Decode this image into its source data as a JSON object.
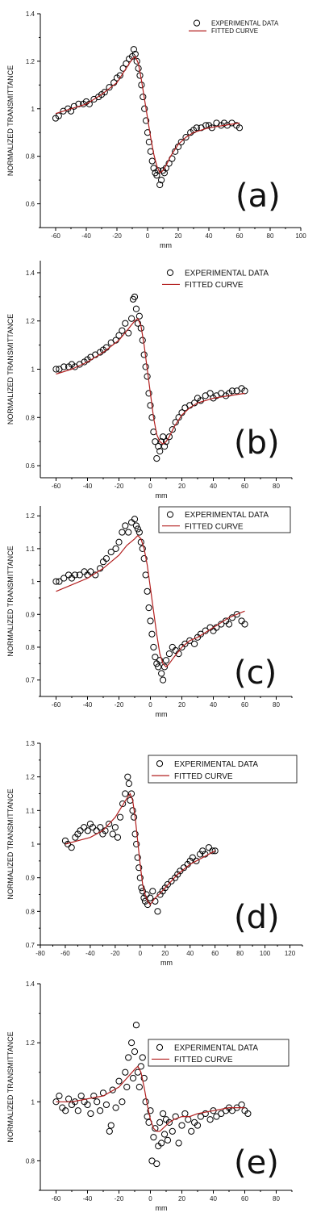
{
  "chart_data": [
    {
      "type": "scatter",
      "panel_label": "(a)",
      "xlabel": "mm",
      "ylabel": "NORMALIZED TRANSMITTANCE",
      "xlim": [
        -70,
        100
      ],
      "ylim": [
        0.5,
        1.4
      ],
      "xticks": [
        -60,
        -40,
        -20,
        0,
        20,
        40,
        60,
        80,
        100
      ],
      "yticks": [
        0.6,
        0.8,
        1.0,
        1.2,
        1.4
      ],
      "legend_position": "top-right",
      "legend_framed": false,
      "series": [
        {
          "name": "EXPERIMENTAL DATA",
          "kind": "markers",
          "x": [
            -60,
            -58,
            -55,
            -52,
            -50,
            -48,
            -45,
            -42,
            -40,
            -38,
            -35,
            -32,
            -30,
            -28,
            -25,
            -22,
            -20,
            -18,
            -16,
            -14,
            -12,
            -10,
            -9,
            -8,
            -7,
            -6,
            -5,
            -4,
            -3,
            -2,
            -1,
            0,
            1,
            2,
            3,
            4,
            5,
            6,
            7,
            8,
            9,
            10,
            11,
            12,
            14,
            16,
            18,
            20,
            22,
            25,
            28,
            30,
            32,
            35,
            38,
            40,
            42,
            45,
            48,
            50,
            52,
            55,
            58,
            60
          ],
          "y": [
            0.96,
            0.97,
            0.99,
            1.0,
            0.99,
            1.01,
            1.02,
            1.02,
            1.03,
            1.02,
            1.04,
            1.05,
            1.06,
            1.07,
            1.09,
            1.11,
            1.13,
            1.14,
            1.17,
            1.19,
            1.21,
            1.22,
            1.25,
            1.23,
            1.2,
            1.17,
            1.14,
            1.1,
            1.05,
            1.0,
            0.95,
            0.9,
            0.86,
            0.82,
            0.78,
            0.75,
            0.73,
            0.72,
            0.74,
            0.68,
            0.7,
            0.74,
            0.73,
            0.75,
            0.77,
            0.79,
            0.82,
            0.84,
            0.86,
            0.88,
            0.9,
            0.91,
            0.92,
            0.92,
            0.93,
            0.93,
            0.92,
            0.94,
            0.93,
            0.94,
            0.93,
            0.94,
            0.93,
            0.92
          ]
        },
        {
          "name": "FITTED CURVE",
          "kind": "line",
          "x": [
            -60,
            -50,
            -40,
            -30,
            -20,
            -15,
            -10,
            -8,
            -6,
            -4,
            -2,
            0,
            2,
            4,
            6,
            8,
            10,
            12,
            15,
            20,
            25,
            30,
            40,
            50,
            60
          ],
          "y": [
            0.98,
            1.0,
            1.02,
            1.06,
            1.11,
            1.16,
            1.21,
            1.22,
            1.19,
            1.12,
            1.04,
            0.96,
            0.88,
            0.81,
            0.76,
            0.73,
            0.74,
            0.76,
            0.8,
            0.85,
            0.88,
            0.9,
            0.92,
            0.93,
            0.94
          ]
        }
      ]
    },
    {
      "type": "scatter",
      "panel_label": "(b)",
      "xlabel": "mm",
      "ylabel": "NORMALIZED TRANSMITTANCE",
      "xlim": [
        -70,
        90
      ],
      "ylim": [
        0.55,
        1.45
      ],
      "xticks": [
        -60,
        -40,
        -20,
        0,
        20,
        40,
        60,
        80
      ],
      "yticks": [
        0.6,
        0.8,
        1.0,
        1.2,
        1.4
      ],
      "legend_position": "top-right",
      "legend_framed": false,
      "series": [
        {
          "name": "EXPERIMENTAL DATA",
          "kind": "markers",
          "x": [
            -60,
            -58,
            -55,
            -52,
            -50,
            -48,
            -45,
            -42,
            -40,
            -38,
            -35,
            -32,
            -30,
            -28,
            -25,
            -22,
            -20,
            -18,
            -16,
            -14,
            -12,
            -11,
            -10,
            -9,
            -8,
            -7,
            -6,
            -5,
            -4,
            -3,
            -2,
            -1,
            0,
            1,
            2,
            3,
            4,
            5,
            6,
            7,
            8,
            9,
            10,
            12,
            14,
            16,
            18,
            20,
            22,
            25,
            28,
            30,
            32,
            35,
            38,
            40,
            42,
            45,
            48,
            50,
            52,
            55,
            58,
            60
          ],
          "y": [
            1.0,
            1.0,
            1.01,
            1.01,
            1.02,
            1.01,
            1.02,
            1.03,
            1.04,
            1.05,
            1.06,
            1.07,
            1.08,
            1.09,
            1.11,
            1.12,
            1.14,
            1.16,
            1.19,
            1.15,
            1.21,
            1.29,
            1.3,
            1.25,
            1.19,
            1.22,
            1.17,
            1.12,
            1.06,
            1.01,
            0.97,
            0.9,
            0.85,
            0.8,
            0.74,
            0.7,
            0.63,
            0.68,
            0.66,
            0.7,
            0.72,
            0.68,
            0.7,
            0.72,
            0.75,
            0.78,
            0.8,
            0.82,
            0.84,
            0.85,
            0.86,
            0.88,
            0.87,
            0.89,
            0.9,
            0.88,
            0.89,
            0.9,
            0.89,
            0.9,
            0.91,
            0.91,
            0.92,
            0.91
          ]
        },
        {
          "name": "FITTED CURVE",
          "kind": "line",
          "x": [
            -60,
            -50,
            -40,
            -30,
            -20,
            -15,
            -10,
            -8,
            -6,
            -4,
            -2,
            0,
            2,
            4,
            6,
            8,
            10,
            12,
            15,
            20,
            25,
            30,
            40,
            50,
            60
          ],
          "y": [
            0.98,
            1.0,
            1.03,
            1.07,
            1.12,
            1.16,
            1.2,
            1.21,
            1.18,
            1.1,
            1.0,
            0.9,
            0.8,
            0.73,
            0.7,
            0.69,
            0.7,
            0.72,
            0.76,
            0.81,
            0.84,
            0.86,
            0.88,
            0.89,
            0.9
          ]
        }
      ]
    },
    {
      "type": "scatter",
      "panel_label": "(c)",
      "xlabel": "mm",
      "ylabel": "NORMALIZED TRANSMITTANCE",
      "xlim": [
        -70,
        90
      ],
      "ylim": [
        0.65,
        1.23
      ],
      "xticks": [
        -60,
        -40,
        -20,
        0,
        20,
        40,
        60,
        80
      ],
      "yticks": [
        0.7,
        0.8,
        0.9,
        1.0,
        1.1,
        1.2
      ],
      "legend_position": "top-right",
      "legend_framed": true,
      "series": [
        {
          "name": "EXPERIMENTAL DATA",
          "kind": "markers",
          "x": [
            -60,
            -58,
            -55,
            -52,
            -50,
            -48,
            -45,
            -42,
            -40,
            -38,
            -35,
            -32,
            -30,
            -28,
            -25,
            -22,
            -20,
            -18,
            -16,
            -14,
            -12,
            -10,
            -9,
            -8,
            -7,
            -6,
            -5,
            -4,
            -3,
            -2,
            -1,
            0,
            1,
            2,
            3,
            4,
            5,
            6,
            7,
            8,
            9,
            10,
            12,
            14,
            16,
            18,
            20,
            22,
            25,
            28,
            30,
            32,
            35,
            38,
            40,
            42,
            45,
            48,
            50,
            52,
            55,
            58,
            60
          ],
          "y": [
            1.0,
            1.0,
            1.01,
            1.02,
            1.01,
            1.02,
            1.02,
            1.03,
            1.02,
            1.03,
            1.02,
            1.04,
            1.06,
            1.07,
            1.09,
            1.1,
            1.12,
            1.15,
            1.17,
            1.15,
            1.18,
            1.19,
            1.17,
            1.16,
            1.15,
            1.12,
            1.1,
            1.07,
            1.02,
            0.97,
            0.92,
            0.88,
            0.84,
            0.8,
            0.77,
            0.75,
            0.74,
            0.76,
            0.72,
            0.7,
            0.74,
            0.76,
            0.78,
            0.8,
            0.79,
            0.78,
            0.8,
            0.81,
            0.82,
            0.81,
            0.83,
            0.84,
            0.85,
            0.86,
            0.85,
            0.86,
            0.87,
            0.88,
            0.87,
            0.89,
            0.9,
            0.88,
            0.87
          ]
        },
        {
          "name": "FITTED CURVE",
          "kind": "line",
          "x": [
            -60,
            -50,
            -40,
            -30,
            -20,
            -15,
            -10,
            -8,
            -6,
            -4,
            -2,
            0,
            2,
            4,
            6,
            8,
            10,
            12,
            15,
            20,
            25,
            30,
            40,
            50,
            60
          ],
          "y": [
            0.97,
            0.99,
            1.01,
            1.04,
            1.08,
            1.11,
            1.13,
            1.14,
            1.13,
            1.1,
            1.05,
            0.98,
            0.91,
            0.84,
            0.78,
            0.75,
            0.74,
            0.75,
            0.77,
            0.8,
            0.82,
            0.83,
            0.86,
            0.89,
            0.91
          ]
        }
      ]
    },
    {
      "type": "scatter",
      "panel_label": "(d)",
      "xlabel": "mm",
      "ylabel": "NORMALIZED TRANSMITTANCE",
      "xlim": [
        -80,
        130
      ],
      "ylim": [
        0.7,
        1.3
      ],
      "xticks": [
        -80,
        -60,
        -40,
        -20,
        0,
        20,
        40,
        60,
        80,
        100,
        120
      ],
      "yticks": [
        0.7,
        0.8,
        0.9,
        1.0,
        1.1,
        1.2,
        1.3
      ],
      "legend_position": "top-right",
      "legend_framed": true,
      "series": [
        {
          "name": "EXPERIMENTAL DATA",
          "kind": "markers",
          "x": [
            -60,
            -58,
            -55,
            -52,
            -50,
            -48,
            -45,
            -42,
            -40,
            -38,
            -35,
            -32,
            -30,
            -28,
            -25,
            -22,
            -20,
            -18,
            -16,
            -14,
            -12,
            -10,
            -9,
            -8,
            -7,
            -6,
            -5,
            -4,
            -3,
            -2,
            -1,
            0,
            1,
            2,
            3,
            4,
            5,
            6,
            8,
            10,
            12,
            14,
            16,
            18,
            20,
            22,
            25,
            28,
            30,
            32,
            35,
            38,
            40,
            42,
            45,
            48,
            50,
            52,
            55,
            58,
            60
          ],
          "y": [
            1.01,
            1.0,
            0.99,
            1.02,
            1.03,
            1.04,
            1.05,
            1.04,
            1.06,
            1.05,
            1.04,
            1.05,
            1.03,
            1.04,
            1.06,
            1.03,
            1.05,
            1.02,
            1.08,
            1.12,
            1.15,
            1.2,
            1.18,
            1.13,
            1.15,
            1.1,
            1.08,
            1.03,
            1.0,
            0.96,
            0.93,
            0.9,
            0.87,
            0.86,
            0.84,
            0.83,
            0.85,
            0.82,
            0.84,
            0.86,
            0.83,
            0.8,
            0.85,
            0.86,
            0.87,
            0.88,
            0.89,
            0.9,
            0.91,
            0.92,
            0.93,
            0.94,
            0.95,
            0.96,
            0.95,
            0.97,
            0.98,
            0.97,
            0.99,
            0.98,
            0.98
          ]
        },
        {
          "name": "FITTED CURVE",
          "kind": "line",
          "x": [
            -60,
            -50,
            -40,
            -30,
            -20,
            -15,
            -10,
            -8,
            -6,
            -4,
            -2,
            0,
            2,
            4,
            6,
            8,
            10,
            12,
            15,
            20,
            25,
            30,
            40,
            50,
            60
          ],
          "y": [
            1.0,
            1.01,
            1.02,
            1.04,
            1.08,
            1.11,
            1.14,
            1.15,
            1.13,
            1.08,
            1.01,
            0.94,
            0.88,
            0.85,
            0.83,
            0.82,
            0.83,
            0.84,
            0.85,
            0.87,
            0.89,
            0.91,
            0.94,
            0.96,
            0.98
          ]
        }
      ]
    },
    {
      "type": "scatter",
      "panel_label": "(e)",
      "xlabel": "mm",
      "ylabel": "NORMALIZED TRANSMITTANCE",
      "xlim": [
        -70,
        90
      ],
      "ylim": [
        0.7,
        1.4
      ],
      "xticks": [
        -60,
        -40,
        -20,
        0,
        20,
        40,
        60,
        80
      ],
      "yticks": [
        0.8,
        1.0,
        1.2,
        1.4
      ],
      "legend_position": "top-right",
      "legend_framed": true,
      "series": [
        {
          "name": "EXPERIMENTAL DATA",
          "kind": "markers",
          "x": [
            -60,
            -58,
            -56,
            -54,
            -52,
            -50,
            -48,
            -46,
            -44,
            -42,
            -40,
            -38,
            -36,
            -34,
            -32,
            -30,
            -28,
            -26,
            -25,
            -24,
            -22,
            -20,
            -18,
            -16,
            -15,
            -14,
            -12,
            -11,
            -10,
            -9,
            -8,
            -7,
            -6,
            -5,
            -4,
            -3,
            -2,
            -1,
            0,
            1,
            2,
            3,
            4,
            5,
            6,
            7,
            8,
            9,
            10,
            11,
            12,
            14,
            16,
            18,
            20,
            22,
            24,
            26,
            28,
            30,
            32,
            35,
            38,
            40,
            42,
            45,
            48,
            50,
            52,
            55,
            58,
            60,
            62
          ],
          "y": [
            1.0,
            1.02,
            0.98,
            0.97,
            1.01,
            0.99,
            1.0,
            0.97,
            1.02,
            1.0,
            0.99,
            0.96,
            1.02,
            1.0,
            0.97,
            1.03,
            0.99,
            0.9,
            0.92,
            1.04,
            0.98,
            1.07,
            1.0,
            1.1,
            1.05,
            1.15,
            1.2,
            1.08,
            1.17,
            1.26,
            1.1,
            1.05,
            1.12,
            1.15,
            1.08,
            1.0,
            0.95,
            0.93,
            0.97,
            0.8,
            0.88,
            0.91,
            0.79,
            0.85,
            0.93,
            0.86,
            0.96,
            0.89,
            0.94,
            0.87,
            0.93,
            0.9,
            0.95,
            0.86,
            0.92,
            0.96,
            0.94,
            0.9,
            0.93,
            0.92,
            0.95,
            0.96,
            0.94,
            0.97,
            0.95,
            0.96,
            0.97,
            0.98,
            0.97,
            0.98,
            0.99,
            0.97,
            0.96
          ]
        },
        {
          "name": "FITTED CURVE",
          "kind": "line",
          "x": [
            -60,
            -50,
            -40,
            -30,
            -20,
            -15,
            -10,
            -8,
            -6,
            -4,
            -2,
            0,
            2,
            4,
            6,
            8,
            10,
            12,
            15,
            20,
            25,
            30,
            40,
            50,
            60
          ],
          "y": [
            1.0,
            1.0,
            1.01,
            1.02,
            1.05,
            1.08,
            1.11,
            1.12,
            1.1,
            1.05,
            0.99,
            0.94,
            0.91,
            0.9,
            0.9,
            0.91,
            0.92,
            0.93,
            0.94,
            0.95,
            0.95,
            0.96,
            0.97,
            0.98,
            0.98
          ]
        }
      ]
    }
  ]
}
